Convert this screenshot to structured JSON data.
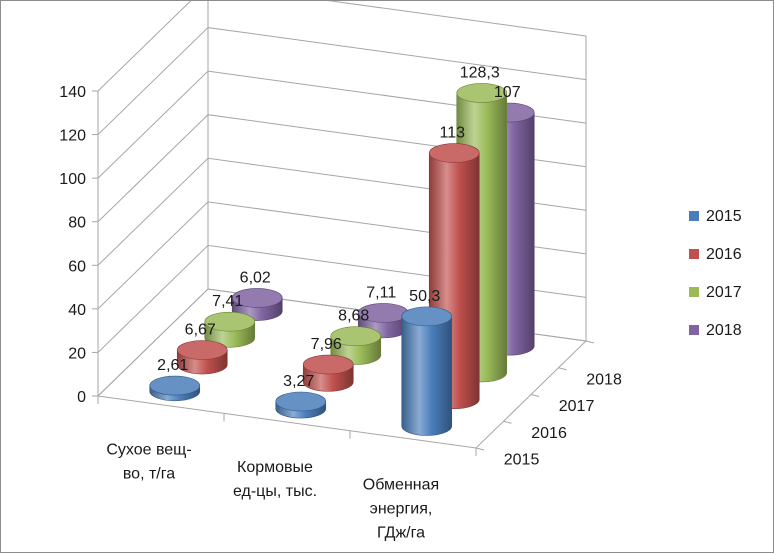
{
  "chart_data": {
    "type": "bar",
    "style": "3d-cylinder",
    "categories": [
      [
        "Сухое вещ-",
        "во, т/га"
      ],
      [
        "Кормовые",
        "ед-цы, тыс."
      ],
      [
        "Обменная",
        "энергия,",
        "ГДж/га"
      ]
    ],
    "series": [
      {
        "name": "2015",
        "color": "#4a7ebb",
        "values": [
          2.61,
          3.27,
          50.3
        ],
        "labels": [
          "2,61",
          "3,27",
          "50,3"
        ]
      },
      {
        "name": "2016",
        "color": "#c0504d",
        "values": [
          6.67,
          7.96,
          113
        ],
        "labels": [
          "6,67",
          "7,96",
          "113"
        ]
      },
      {
        "name": "2017",
        "color": "#9bbb59",
        "values": [
          7.41,
          8.68,
          128.3
        ],
        "labels": [
          "7,41",
          "8,68",
          "128,3"
        ]
      },
      {
        "name": "2018",
        "color": "#8064a2",
        "values": [
          6.02,
          7.11,
          107
        ],
        "labels": [
          "6,02",
          "7,11",
          "107"
        ]
      }
    ],
    "depth_labels": [
      "2015",
      "2016",
      "2017",
      "2018"
    ],
    "yticks": [
      "0",
      "20",
      "40",
      "60",
      "80",
      "100",
      "120",
      "140"
    ],
    "ylim": [
      0,
      140
    ],
    "grid": true,
    "legend_position": "right"
  }
}
